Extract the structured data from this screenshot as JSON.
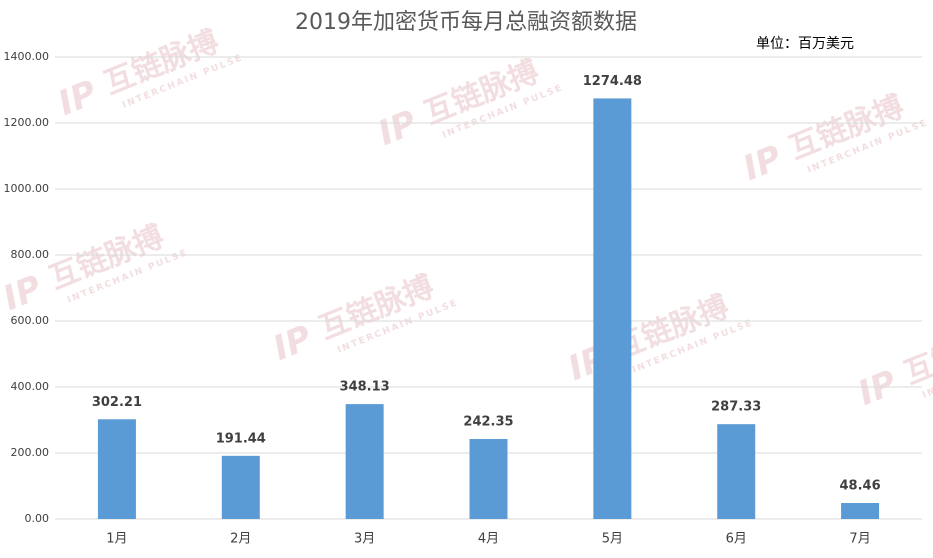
{
  "chart_data": {
    "type": "bar",
    "title": "2019年加密货币每月总融资额数据",
    "unit_label": "单位：百万美元",
    "watermark": {
      "text": "互链脉搏",
      "subtext": "INTERCHAIN PULSE"
    },
    "categories": [
      "1月",
      "2月",
      "3月",
      "4月",
      "5月",
      "6月",
      "7月"
    ],
    "values": [
      302.21,
      191.44,
      348.13,
      242.35,
      1274.48,
      287.33,
      48.46
    ],
    "color": "#5b9bd5",
    "ylim": [
      0,
      1400
    ],
    "yticks": [
      {
        "value": 0,
        "label": "0.00"
      },
      {
        "value": 200,
        "label": "200.00"
      },
      {
        "value": 400,
        "label": "400.00"
      },
      {
        "value": 600,
        "label": "600.00"
      },
      {
        "value": 800,
        "label": "800.00"
      },
      {
        "value": 1000,
        "label": "1000.00"
      },
      {
        "value": 1200,
        "label": "1200.00"
      },
      {
        "value": 1400,
        "label": "1400.00"
      }
    ],
    "grid": true
  }
}
